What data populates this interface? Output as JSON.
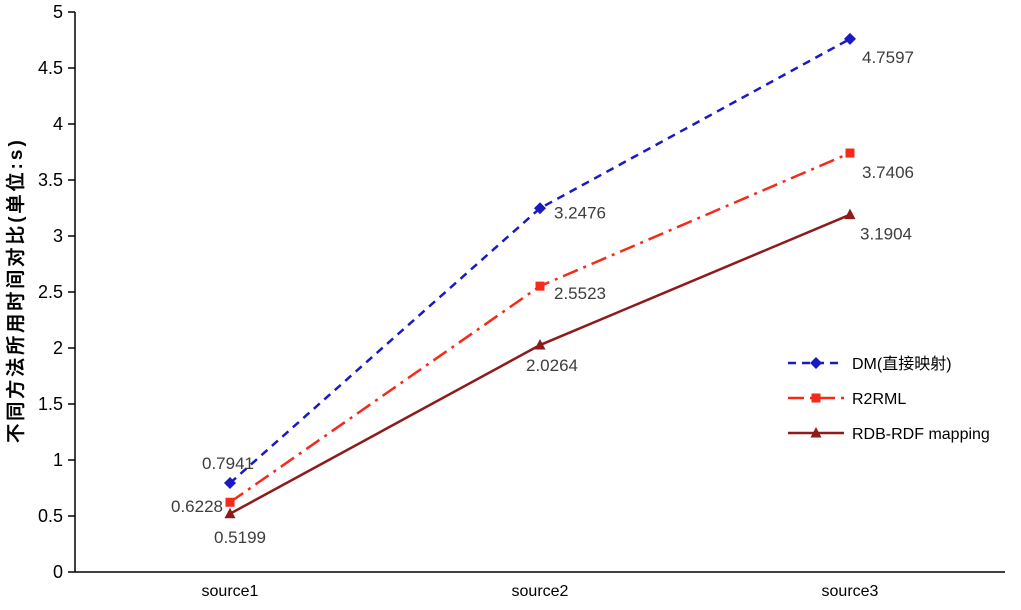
{
  "chart_data": {
    "type": "line",
    "title": "",
    "xlabel": "",
    "ylabel": "不同方法所用时间对比(单位:s)",
    "categories": [
      "source1",
      "source2",
      "source3"
    ],
    "ylim": [
      0,
      5
    ],
    "ytick_step": 0.5,
    "yticks": [
      "0",
      "0.5",
      "1",
      "1.5",
      "2",
      "2.5",
      "3",
      "3.5",
      "4",
      "4.5",
      "5"
    ],
    "grid": false,
    "legend_position": "right-lower-inside",
    "axis_color": "#000000",
    "label_color": "#3d3d3d",
    "series": [
      {
        "name": "DM(直接映射)",
        "values": [
          0.7941,
          3.2476,
          4.7597
        ],
        "labels": [
          "0.7941",
          "3.2476",
          "4.7597"
        ],
        "color": "#1A1AC4",
        "line_style": "dashed",
        "marker": "diamond"
      },
      {
        "name": "R2RML",
        "values": [
          0.6228,
          2.5523,
          3.7406
        ],
        "labels": [
          "0.6228",
          "2.5523",
          "3.7406"
        ],
        "color": "#F42A1B",
        "line_style": "dash-dot",
        "marker": "square"
      },
      {
        "name": "RDB-RDF mapping",
        "values": [
          0.5199,
          2.0264,
          3.1904
        ],
        "labels": [
          "0.5199",
          "2.0264",
          "3.1904"
        ],
        "color": "#8E1B1B",
        "line_style": "solid",
        "marker": "triangle"
      }
    ]
  }
}
